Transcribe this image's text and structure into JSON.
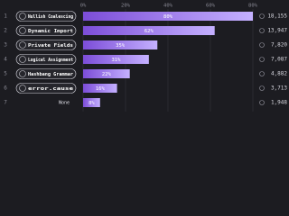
{
  "chart_data": {
    "type": "bar",
    "orientation": "horizontal",
    "ranks": [
      1,
      2,
      3,
      4,
      5,
      6,
      7
    ],
    "categories": [
      "Nullish Coalescing",
      "Dynamic Import",
      "Private Fields",
      "Logical Assignment",
      "Hashbang Grammar",
      "error.cause",
      "None"
    ],
    "values": [
      80,
      62,
      35,
      31,
      22,
      16,
      8
    ],
    "value_labels": [
      "80%",
      "62%",
      "35%",
      "31%",
      "22%",
      "16%",
      "8%"
    ],
    "counts": [
      "18,155",
      "13,947",
      "7,820",
      "7,087",
      "4,882",
      "3,713",
      "1,948"
    ],
    "color": "#a78bfa",
    "xlim": [
      0,
      80
    ],
    "xticks": [
      {
        "value": 0,
        "label": "0%"
      },
      {
        "value": 20,
        "label": "20%"
      },
      {
        "value": 40,
        "label": "40%"
      },
      {
        "value": 60,
        "label": "60%"
      },
      {
        "value": 80,
        "label": "80%"
      }
    ],
    "grid": true
  }
}
